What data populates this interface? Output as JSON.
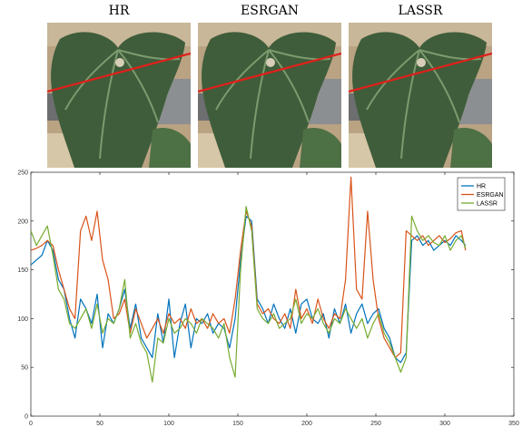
{
  "images": [
    {
      "title": "HR"
    },
    {
      "title": "ESRGAN"
    },
    {
      "title": "LASSR"
    }
  ],
  "chart_data": {
    "type": "line",
    "title": "",
    "xlabel": "",
    "ylabel": "",
    "xlim": [
      0,
      350
    ],
    "ylim": [
      0,
      250
    ],
    "xticks": [
      0,
      50,
      100,
      150,
      200,
      250,
      300,
      350
    ],
    "yticks": [
      0,
      50,
      100,
      150,
      200,
      250
    ],
    "grid": false,
    "legend": "top-right",
    "series": [
      {
        "name": "HR",
        "color": "#0072BD",
        "x": [
          0,
          4,
          8,
          12,
          16,
          20,
          24,
          28,
          32,
          36,
          40,
          44,
          48,
          52,
          56,
          60,
          64,
          68,
          72,
          76,
          80,
          84,
          88,
          92,
          96,
          100,
          104,
          108,
          112,
          116,
          120,
          124,
          128,
          132,
          136,
          140,
          144,
          148,
          152,
          156,
          160,
          164,
          168,
          172,
          176,
          180,
          184,
          188,
          192,
          196,
          200,
          204,
          208,
          212,
          216,
          220,
          224,
          228,
          232,
          236,
          240,
          244,
          248,
          252,
          256,
          260,
          264,
          268,
          272,
          276,
          280,
          284,
          288,
          292,
          296,
          300,
          304,
          308,
          312,
          315
        ],
        "y": [
          155,
          160,
          165,
          180,
          170,
          140,
          130,
          100,
          80,
          120,
          110,
          95,
          125,
          70,
          105,
          95,
          110,
          130,
          90,
          115,
          80,
          70,
          60,
          105,
          75,
          120,
          60,
          95,
          115,
          70,
          100,
          95,
          105,
          85,
          95,
          90,
          70,
          100,
          160,
          205,
          200,
          120,
          110,
          95,
          115,
          100,
          90,
          110,
          85,
          115,
          120,
          100,
          95,
          105,
          80,
          110,
          95,
          115,
          85,
          105,
          115,
          95,
          105,
          110,
          90,
          80,
          60,
          55,
          65,
          180,
          185,
          175,
          180,
          170,
          175,
          180,
          175,
          185,
          180,
          175
        ]
      },
      {
        "name": "ESRGAN",
        "color": "#D95319",
        "x": [
          0,
          4,
          8,
          12,
          16,
          20,
          24,
          28,
          32,
          36,
          40,
          44,
          48,
          52,
          56,
          60,
          64,
          68,
          72,
          76,
          80,
          84,
          88,
          92,
          96,
          100,
          104,
          108,
          112,
          116,
          120,
          124,
          128,
          132,
          136,
          140,
          144,
          148,
          152,
          156,
          160,
          164,
          168,
          172,
          176,
          180,
          184,
          188,
          192,
          196,
          200,
          204,
          208,
          212,
          216,
          220,
          224,
          228,
          232,
          236,
          240,
          244,
          248,
          252,
          256,
          260,
          264,
          268,
          272,
          276,
          280,
          284,
          288,
          292,
          296,
          300,
          304,
          308,
          312,
          315
        ],
        "y": [
          170,
          172,
          175,
          180,
          175,
          150,
          130,
          110,
          100,
          190,
          205,
          180,
          210,
          160,
          140,
          100,
          105,
          120,
          85,
          110,
          95,
          80,
          90,
          100,
          85,
          105,
          95,
          100,
          90,
          110,
          95,
          100,
          90,
          105,
          95,
          100,
          85,
          120,
          170,
          210,
          195,
          115,
          105,
          110,
          100,
          95,
          105,
          90,
          130,
          100,
          110,
          95,
          120,
          100,
          90,
          105,
          100,
          140,
          245,
          130,
          120,
          210,
          140,
          100,
          80,
          70,
          60,
          65,
          190,
          185,
          180,
          185,
          175,
          180,
          185,
          178,
          182,
          188,
          190,
          170
        ]
      },
      {
        "name": "LASSR",
        "color": "#77AC30",
        "x": [
          0,
          4,
          8,
          12,
          16,
          20,
          24,
          28,
          32,
          36,
          40,
          44,
          48,
          52,
          56,
          60,
          64,
          68,
          72,
          76,
          80,
          84,
          88,
          92,
          96,
          100,
          104,
          108,
          112,
          116,
          120,
          124,
          128,
          132,
          136,
          140,
          144,
          148,
          152,
          156,
          160,
          164,
          168,
          172,
          176,
          180,
          184,
          188,
          192,
          196,
          200,
          204,
          208,
          212,
          216,
          220,
          224,
          228,
          232,
          236,
          240,
          244,
          248,
          252,
          256,
          260,
          264,
          268,
          272,
          276,
          280,
          284,
          288,
          292,
          296,
          300,
          304,
          308,
          312,
          315
        ],
        "y": [
          190,
          175,
          185,
          195,
          165,
          130,
          120,
          95,
          90,
          100,
          110,
          90,
          115,
          85,
          100,
          95,
          110,
          140,
          80,
          95,
          75,
          65,
          35,
          80,
          75,
          100,
          85,
          90,
          100,
          95,
          85,
          100,
          95,
          90,
          80,
          95,
          60,
          40,
          150,
          215,
          190,
          110,
          100,
          95,
          105,
          90,
          95,
          100,
          120,
          95,
          105,
          100,
          110,
          95,
          85,
          100,
          95,
          110,
          100,
          90,
          100,
          80,
          95,
          105,
          85,
          75,
          60,
          45,
          60,
          205,
          190,
          180,
          185,
          178,
          175,
          185,
          170,
          180,
          185,
          172
        ]
      }
    ]
  }
}
